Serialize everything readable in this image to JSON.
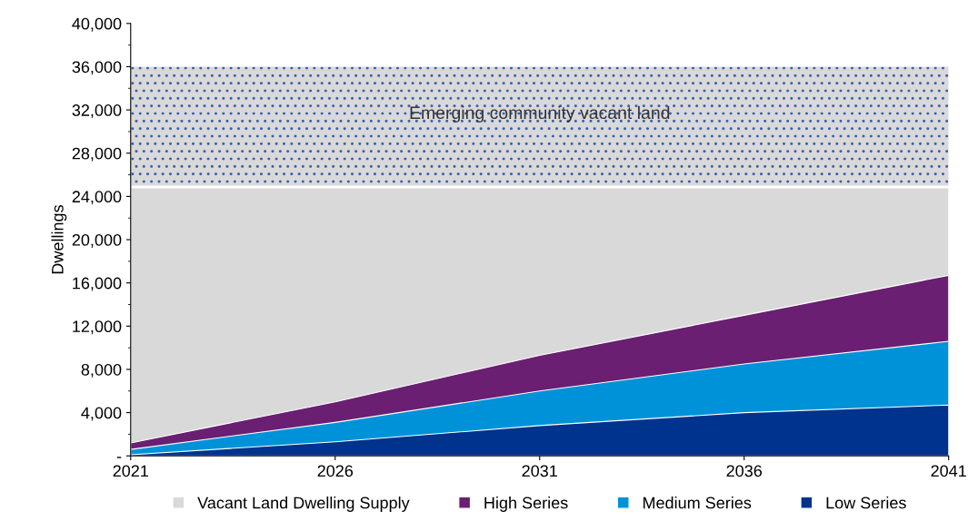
{
  "chart_data": {
    "type": "area",
    "ylabel": "Dwellings",
    "x": [
      2021,
      2026,
      2031,
      2036,
      2041
    ],
    "series": [
      {
        "name": "Vacant Land Dwelling Supply",
        "color": "#d9d9d9",
        "values": [
          24800,
          24800,
          24800,
          24800,
          24800
        ]
      },
      {
        "name": "High Series",
        "color": "#6a1f72",
        "values": [
          1200,
          5000,
          9300,
          13000,
          16700
        ]
      },
      {
        "name": "Medium Series",
        "color": "#0092d8",
        "values": [
          600,
          3100,
          6000,
          8500,
          10600
        ]
      },
      {
        "name": "Low Series",
        "color": "#00338d",
        "values": [
          100,
          1300,
          2800,
          4000,
          4700
        ]
      }
    ],
    "xlim": [
      2021,
      2041
    ],
    "xticks": [
      2021,
      2026,
      2031,
      2036,
      2041
    ],
    "ylim": [
      0,
      40000
    ],
    "yticks": [
      {
        "value": 0,
        "label": "-"
      },
      {
        "value": 4000,
        "label": "4,000"
      },
      {
        "value": 8000,
        "label": "8,000"
      },
      {
        "value": 12000,
        "label": "12,000"
      },
      {
        "value": 16000,
        "label": "16,000"
      },
      {
        "value": 20000,
        "label": "20,000"
      },
      {
        "value": 24000,
        "label": "24,000"
      },
      {
        "value": 28000,
        "label": "28,000"
      },
      {
        "value": 32000,
        "label": "32,000"
      },
      {
        "value": 36000,
        "label": "36,000"
      },
      {
        "value": 40000,
        "label": "40,000"
      }
    ],
    "bands": [
      {
        "axis": "y",
        "from": 25000,
        "to": 36000,
        "label": "Emerging community vacant land",
        "color": "#d9d9d9"
      }
    ],
    "grid": false,
    "legend": "bottom"
  }
}
